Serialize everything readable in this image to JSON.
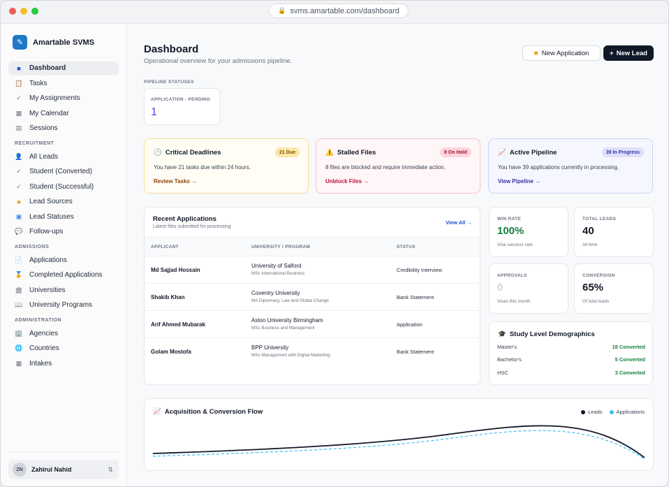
{
  "browser": {
    "url": "svms.amartable.com/dashboard"
  },
  "sidebar": {
    "brand": "Amartable SVMS",
    "main_items": [
      {
        "label": "Dashboard",
        "icon": "dashboard-icon",
        "active": true
      },
      {
        "label": "Tasks",
        "icon": "clipboard-icon"
      },
      {
        "label": "My Assignments",
        "icon": "check-icon"
      },
      {
        "label": "My Calendar",
        "icon": "calendar-icon"
      },
      {
        "label": "Sessions",
        "icon": "sessions-icon"
      }
    ],
    "recruitment_heading": "RECRUITMENT",
    "recruitment_items": [
      {
        "label": "All Leads",
        "icon": "user-icon"
      },
      {
        "label": "Student (Converted)",
        "icon": "check-icon"
      },
      {
        "label": "Student (Successful)",
        "icon": "check-icon"
      },
      {
        "label": "Lead Sources",
        "icon": "folder-icon"
      },
      {
        "label": "Lead Statuses",
        "icon": "status-icon"
      },
      {
        "label": "Follow-ups",
        "icon": "chat-icon"
      }
    ],
    "admissions_heading": "ADMISSIONS",
    "admissions_items": [
      {
        "label": "Applications",
        "icon": "document-icon"
      },
      {
        "label": "Completed Applications",
        "icon": "medal-icon"
      },
      {
        "label": "Universities",
        "icon": "university-icon"
      },
      {
        "label": "University Programs",
        "icon": "book-icon"
      }
    ],
    "administration_heading": "ADMINISTRATION",
    "administration_items": [
      {
        "label": "Agencies",
        "icon": "building-icon"
      },
      {
        "label": "Countries",
        "icon": "globe-icon"
      },
      {
        "label": "Intakes",
        "icon": "calendar-icon"
      }
    ],
    "user": {
      "initials": "ZN",
      "name": "Zahirul Nahid"
    }
  },
  "header": {
    "title": "Dashboard",
    "subtitle": "Operational overview for your admissions pipeline.",
    "new_application": "New Application",
    "new_lead": "New Lead"
  },
  "pipeline": {
    "heading": "PIPELINE STATUSES",
    "card_label": "APPLICATION - PENDING",
    "card_value": "1"
  },
  "alerts": [
    {
      "title": "Critical Deadlines",
      "badge": "21 Due",
      "text": "You have 21 tasks due within 24 hours.",
      "link": "Review Tasks →"
    },
    {
      "title": "Stalled Files",
      "badge": "8 On Hold",
      "text": "8 files are blocked and require immediate action.",
      "link": "Unblock Files →"
    },
    {
      "title": "Active Pipeline",
      "badge": "39 In Progress",
      "text": "You have 39 applications currently in processing.",
      "link": "View Pipeline →"
    }
  ],
  "recent": {
    "title": "Recent Applications",
    "subtitle": "Latest files submitted for processing",
    "view_all": "View All →",
    "columns": [
      "APPLICANT",
      "UNIVERSITY / PROGRAM",
      "STATUS"
    ],
    "rows": [
      {
        "applicant": "Md Sajjad Hossain",
        "university": "University of Salford",
        "program": "MSc International Business",
        "status": "Credibility Interview"
      },
      {
        "applicant": "Shakib Khan",
        "university": "Coventry University",
        "program": "MA Diplomacy, Law and Global Change",
        "status": "Bank Statement"
      },
      {
        "applicant": "Arif Ahmed Mubarak",
        "university": "Aston University Birmingham",
        "program": "MSc Business and Management",
        "status": "Application"
      },
      {
        "applicant": "Golam Mostofa",
        "university": "BPP University",
        "program": "MSc Management with Digital Marketing",
        "status": "Bank Statement"
      }
    ]
  },
  "stats": [
    {
      "label": "WIN RATE",
      "value": "100%",
      "sub": "Visa success rate",
      "color": "#15803d"
    },
    {
      "label": "TOTAL LEADS",
      "value": "40",
      "sub": "All time",
      "color": "#111827"
    },
    {
      "label": "APPROVALS",
      "value": "0",
      "sub": "Visas this month",
      "color": "#d1d5db"
    },
    {
      "label": "CONVERSION",
      "value": "65%",
      "sub": "Of total leads",
      "color": "#111827"
    }
  ],
  "demographics": {
    "title": "Study Level Demographics",
    "rows": [
      {
        "level": "Master's",
        "value": "18 Converted"
      },
      {
        "level": "Bachelor's",
        "value": "5 Converted"
      },
      {
        "level": "HSC",
        "value": "3 Converted"
      }
    ]
  },
  "flow": {
    "title": "Acquisition & Conversion Flow",
    "legend": [
      {
        "name": "Leads",
        "color": "#111827"
      },
      {
        "name": "Applications",
        "color": "#38bdf8"
      }
    ]
  }
}
